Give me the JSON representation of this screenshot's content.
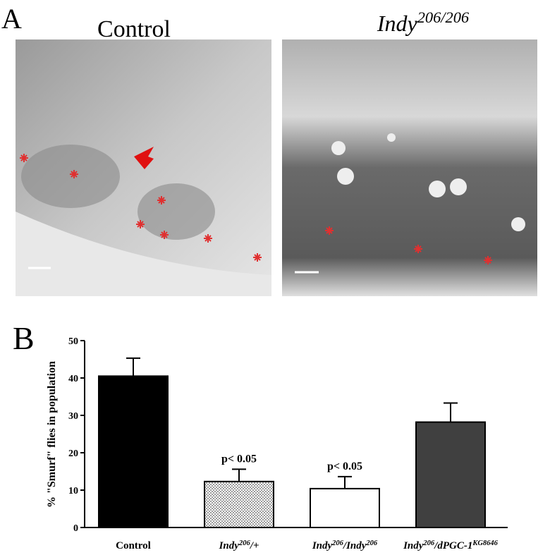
{
  "panel_a": {
    "label": "A",
    "left_title": "Control",
    "right_title": "Indy206/206"
  },
  "panel_b": {
    "label": "B"
  },
  "chart_data": {
    "type": "bar",
    "y_label": "% \"Smurf\" flies in population",
    "categories": [
      "Control",
      "Indy206/+",
      "Indy206/Indy206",
      "Indy206/dPGC-1KG8646"
    ],
    "values": [
      40.5,
      12.3,
      10.4,
      28.2
    ],
    "errors": [
      4.8,
      3.3,
      3.2,
      5.1
    ],
    "colors": [
      "#000000",
      "#d0d0d0",
      "#ffffff",
      "#404040"
    ],
    "annotations": [
      null,
      "p< 0.05",
      "p< 0.05",
      null
    ],
    "ylim": [
      0,
      50
    ],
    "yticks": [
      0,
      10,
      20,
      30,
      40,
      50
    ]
  }
}
